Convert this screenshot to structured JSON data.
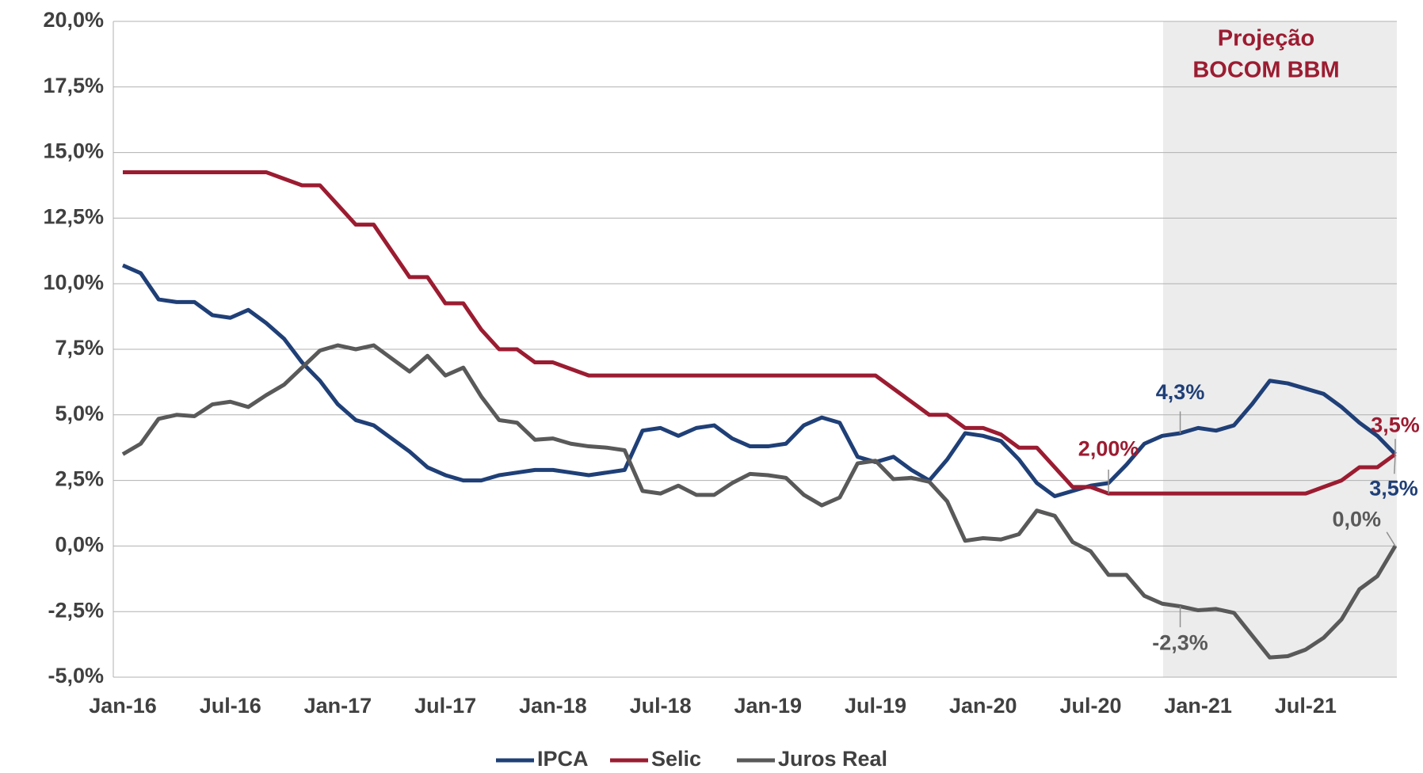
{
  "chart_data": {
    "type": "line",
    "categories": [
      "Jan-16",
      null,
      null,
      null,
      null,
      null,
      "Jul-16",
      null,
      null,
      null,
      null,
      null,
      "Jan-17",
      null,
      null,
      null,
      null,
      null,
      "Jul-17",
      null,
      null,
      null,
      null,
      null,
      "Jan-18",
      null,
      null,
      null,
      null,
      null,
      "Jul-18",
      null,
      null,
      null,
      null,
      null,
      "Jan-19",
      null,
      null,
      null,
      null,
      null,
      "Jul-19",
      null,
      null,
      null,
      null,
      null,
      "Jan-20",
      null,
      null,
      null,
      null,
      null,
      "Jul-20",
      null,
      null,
      null,
      null,
      null,
      "Jan-21",
      null,
      null,
      null,
      null,
      null,
      "Jul-21",
      null,
      null,
      null,
      null,
      null
    ],
    "series": [
      {
        "name": "IPCA",
        "color": "#1f3f77",
        "values": [
          10.7,
          10.4,
          9.4,
          9.3,
          9.3,
          8.8,
          8.7,
          9.0,
          8.5,
          7.9,
          7.0,
          6.3,
          5.4,
          4.8,
          4.6,
          4.1,
          3.6,
          3.0,
          2.7,
          2.5,
          2.5,
          2.7,
          2.8,
          2.9,
          2.9,
          2.8,
          2.7,
          2.8,
          2.9,
          4.4,
          4.5,
          4.2,
          4.5,
          4.6,
          4.1,
          3.8,
          3.8,
          3.9,
          4.6,
          4.9,
          4.7,
          3.4,
          3.2,
          3.4,
          2.9,
          2.5,
          3.3,
          4.3,
          4.2,
          4.0,
          3.3,
          2.4,
          1.9,
          2.1,
          2.3,
          2.4,
          3.1,
          3.9,
          4.2,
          4.3,
          4.5,
          4.4,
          4.6,
          5.4,
          6.3,
          6.2,
          6.0,
          5.8,
          5.3,
          4.7,
          4.2,
          3.5
        ],
        "value_labels": [
          null,
          null,
          null,
          null,
          null,
          null,
          null,
          null,
          null,
          null,
          null,
          null,
          null,
          null,
          null,
          null,
          null,
          null,
          null,
          null,
          null,
          null,
          null,
          null,
          null,
          null,
          null,
          null,
          null,
          null,
          null,
          null,
          null,
          null,
          null,
          null,
          null,
          null,
          null,
          null,
          null,
          null,
          null,
          null,
          null,
          null,
          null,
          null,
          null,
          null,
          null,
          null,
          null,
          null,
          null,
          null,
          null,
          null,
          null,
          "4,3%",
          null,
          null,
          null,
          null,
          null,
          null,
          null,
          null,
          null,
          null,
          null,
          "3,5%"
        ]
      },
      {
        "name": "Selic",
        "color": "#9b1c31",
        "values": [
          14.25,
          14.25,
          14.25,
          14.25,
          14.25,
          14.25,
          14.25,
          14.25,
          14.25,
          14.0,
          13.75,
          13.75,
          13.0,
          12.25,
          12.25,
          11.25,
          10.25,
          10.25,
          9.25,
          9.25,
          8.25,
          7.5,
          7.5,
          7.0,
          7.0,
          6.75,
          6.5,
          6.5,
          6.5,
          6.5,
          6.5,
          6.5,
          6.5,
          6.5,
          6.5,
          6.5,
          6.5,
          6.5,
          6.5,
          6.5,
          6.5,
          6.5,
          6.5,
          6.0,
          5.5,
          5.0,
          5.0,
          4.5,
          4.5,
          4.25,
          3.75,
          3.75,
          3.0,
          2.25,
          2.25,
          2.0,
          2.0,
          2.0,
          2.0,
          2.0,
          2.0,
          2.0,
          2.0,
          2.0,
          2.0,
          2.0,
          2.0,
          2.25,
          2.5,
          3.0,
          3.0,
          3.5
        ],
        "value_labels": [
          null,
          null,
          null,
          null,
          null,
          null,
          null,
          null,
          null,
          null,
          null,
          null,
          null,
          null,
          null,
          null,
          null,
          null,
          null,
          null,
          null,
          null,
          null,
          null,
          null,
          null,
          null,
          null,
          null,
          null,
          null,
          null,
          null,
          null,
          null,
          null,
          null,
          null,
          null,
          null,
          null,
          null,
          null,
          null,
          null,
          null,
          null,
          null,
          null,
          null,
          null,
          null,
          null,
          null,
          null,
          "2,00%",
          null,
          null,
          null,
          null,
          null,
          null,
          null,
          null,
          null,
          null,
          null,
          null,
          null,
          null,
          null,
          "3,5%"
        ]
      },
      {
        "name": "Juros Real",
        "color": "#595959",
        "values": [
          3.5,
          3.9,
          4.85,
          5.0,
          4.95,
          5.4,
          5.5,
          5.3,
          5.75,
          6.15,
          6.8,
          7.45,
          7.65,
          7.5,
          7.65,
          7.15,
          6.65,
          7.25,
          6.5,
          6.8,
          5.7,
          4.8,
          4.7,
          4.05,
          4.1,
          3.9,
          3.8,
          3.75,
          3.65,
          2.1,
          2.0,
          2.3,
          1.95,
          1.95,
          2.4,
          2.75,
          2.7,
          2.6,
          1.95,
          1.55,
          1.85,
          3.15,
          3.25,
          2.55,
          2.6,
          2.45,
          1.7,
          0.2,
          0.3,
          0.25,
          0.45,
          1.35,
          1.15,
          0.15,
          -0.2,
          -1.1,
          -1.1,
          -1.9,
          -2.2,
          -2.3,
          -2.45,
          -2.4,
          -2.55,
          -3.4,
          -4.25,
          -4.2,
          -3.95,
          -3.5,
          -2.8,
          -1.65,
          -1.15,
          0.0
        ],
        "value_labels": [
          null,
          null,
          null,
          null,
          null,
          null,
          null,
          null,
          null,
          null,
          null,
          null,
          null,
          null,
          null,
          null,
          null,
          null,
          null,
          null,
          null,
          null,
          null,
          null,
          null,
          null,
          null,
          null,
          null,
          null,
          null,
          null,
          null,
          null,
          null,
          null,
          null,
          null,
          null,
          null,
          null,
          null,
          null,
          null,
          null,
          null,
          null,
          null,
          null,
          null,
          null,
          null,
          null,
          null,
          null,
          null,
          null,
          null,
          null,
          "-2,3%",
          null,
          null,
          null,
          null,
          null,
          null,
          null,
          null,
          null,
          null,
          null,
          "0,0%"
        ]
      }
    ],
    "annotations": [
      "Projeção",
      "BOCOM BBM"
    ],
    "ylim": [
      -5,
      20
    ],
    "yticks": [
      {
        "value": -5,
        "label": "-5,0%"
      },
      {
        "value": -2.5,
        "label": "-2,5%"
      },
      {
        "value": 0,
        "label": "0,0%"
      },
      {
        "value": 2.5,
        "label": "2,5%"
      },
      {
        "value": 5,
        "label": "5,0%"
      },
      {
        "value": 7.5,
        "label": "7,5%"
      },
      {
        "value": 10,
        "label": "10,0%"
      },
      {
        "value": 12.5,
        "label": "12,5%"
      },
      {
        "value": 15,
        "label": "15,0%"
      },
      {
        "value": 17.5,
        "label": "17,5%"
      },
      {
        "value": 20,
        "label": "20,0%"
      }
    ],
    "grid": true,
    "legend": "bottom"
  }
}
